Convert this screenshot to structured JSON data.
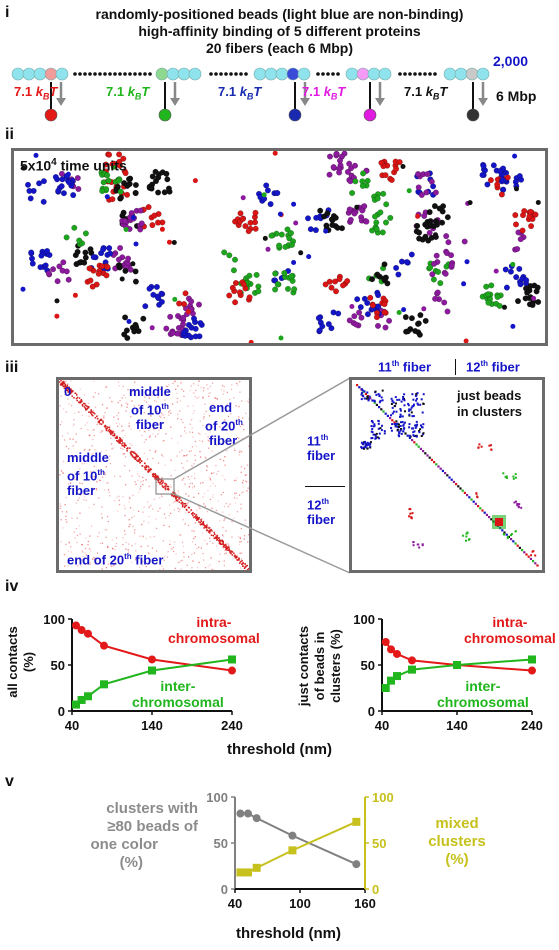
{
  "panel_i": {
    "label": "i",
    "line1": "randomly-positioned beads (light blue are non-binding)",
    "line2": "high-affinity binding of 5 different proteins",
    "line3": "20 fibers (each 6 Mbp)",
    "bead_count": "2,000",
    "length": "6 Mbp",
    "energy_value": "7.1",
    "energy_k": "k",
    "energy_sub": "B",
    "energy_T": "T",
    "protein_colors": [
      "#e31919",
      "#21b51e",
      "#1515c8",
      "#e01ae0",
      "#222222"
    ]
  },
  "panel_ii": {
    "label": "ii",
    "time_text": "5x10",
    "time_exp": "4",
    "time_unit": " time units",
    "colors": {
      "red": "#d91515",
      "green": "#1ea51e",
      "blue": "#1515c8",
      "purple": "#8c1a9c",
      "black": "#111111"
    }
  },
  "panel_iii": {
    "label": "iii",
    "zero": "0",
    "middle_top": "middle of 10th fiber",
    "middle_top_a": "middle",
    "middle_top_b": "of 10",
    "middle_top_sup": "th",
    "middle_top_c": "fiber",
    "end_top_a": "end",
    "end_top_b": "of 20",
    "end_top_sup": "th",
    "end_top_c": "fiber",
    "middle_left_a": "middle",
    "middle_left_b": "of 10",
    "middle_left_sup": "th",
    "middle_left_c": "fiber",
    "end_bottom": "end of 20",
    "end_bottom_sup": "th",
    "end_bottom_c": " fiber",
    "fiber11": "11",
    "fiber12": "12",
    "fiber_sup": "th",
    "fiber_word": " fiber",
    "fiber_word_b": "fiber",
    "clusters_note_a": "just beads",
    "clusters_note_b": "in clusters"
  },
  "panel_iv": {
    "label": "iv",
    "left_ylabel_a": "all contacts",
    "left_ylabel_b": "(%)",
    "right_ylabel_a": "just contacts",
    "right_ylabel_b": "of beads in",
    "right_ylabel_c": "clusters (%)",
    "intra_a": "intra-",
    "intra_b": "chromosomal",
    "inter_a": "inter-",
    "inter_b": "chromosomal",
    "xlabel": "threshold (nm)"
  },
  "panel_v": {
    "label": "v",
    "left_label_a": "clusters with",
    "left_label_b": "≥80 beads of",
    "left_label_c": "one color",
    "left_label_d": "(%)",
    "right_label_a": "mixed",
    "right_label_b": "clusters",
    "right_label_c": "(%)",
    "xlabel": "threshold (nm)"
  },
  "chart_data": [
    {
      "type": "line",
      "panel": "iv-left",
      "xlim": [
        40,
        240
      ],
      "ylim": [
        0,
        100
      ],
      "xticks": [
        40,
        140,
        240
      ],
      "yticks": [
        0,
        50,
        100
      ],
      "xlabel": "threshold (nm)",
      "ylabel": "all contacts (%)",
      "series": [
        {
          "name": "intra-chromosomal",
          "color": "#e31919",
          "marker": "circle",
          "x": [
            45,
            52,
            60,
            80,
            140,
            240
          ],
          "y": [
            93,
            88,
            84,
            71,
            56,
            44
          ]
        },
        {
          "name": "inter-chromosomal",
          "color": "#21b51e",
          "marker": "square",
          "x": [
            45,
            52,
            60,
            80,
            140,
            240
          ],
          "y": [
            7,
            12,
            16,
            29,
            44,
            56
          ]
        }
      ]
    },
    {
      "type": "line",
      "panel": "iv-right",
      "xlim": [
        40,
        240
      ],
      "ylim": [
        0,
        100
      ],
      "xticks": [
        40,
        140,
        240
      ],
      "yticks": [
        0,
        50,
        100
      ],
      "xlabel": "threshold (nm)",
      "ylabel": "just contacts of beads in clusters (%)",
      "series": [
        {
          "name": "intra-chromosomal",
          "color": "#e31919",
          "marker": "circle",
          "x": [
            45,
            52,
            60,
            80,
            140,
            240
          ],
          "y": [
            75,
            67,
            62,
            55,
            50,
            44
          ]
        },
        {
          "name": "inter-chromosomal",
          "color": "#21b51e",
          "marker": "square",
          "x": [
            45,
            52,
            60,
            80,
            140,
            240
          ],
          "y": [
            25,
            33,
            38,
            45,
            50,
            56
          ]
        }
      ]
    },
    {
      "type": "line",
      "panel": "v",
      "xlim": [
        40,
        160
      ],
      "xticks": [
        40,
        100,
        160
      ],
      "xlabel": "threshold (nm)",
      "y_left": {
        "ylim": [
          0,
          100
        ],
        "yticks": [
          0,
          50,
          100
        ],
        "label": "clusters with ≥80 beads of one color (%)"
      },
      "y_right": {
        "ylim": [
          0,
          100
        ],
        "yticks": [
          0,
          50,
          100
        ],
        "label": "mixed clusters (%)"
      },
      "series": [
        {
          "name": "clusters with ≥80 beads of one color",
          "axis": "left",
          "color": "#808080",
          "marker": "circle",
          "x": [
            45,
            52,
            60,
            93,
            152
          ],
          "y": [
            82,
            82,
            77,
            58,
            27
          ]
        },
        {
          "name": "mixed clusters",
          "axis": "right",
          "color": "#c6c11c",
          "marker": "square",
          "x": [
            45,
            52,
            60,
            93,
            152
          ],
          "y": [
            18,
            18,
            23,
            42,
            73
          ]
        }
      ]
    }
  ]
}
